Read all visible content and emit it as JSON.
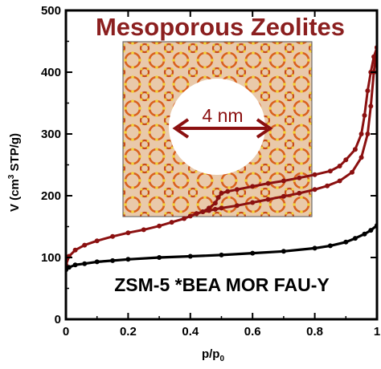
{
  "chart_data": {
    "type": "line",
    "title": "Mesoporous Zeolites",
    "xlabel": "p/p",
    "xlabel_sub": "0",
    "ylabel_parts": [
      "V (cm",
      "3",
      " STP/g)"
    ],
    "xlim": [
      0,
      1
    ],
    "ylim": [
      0,
      500
    ],
    "x_ticks": [
      0,
      0.2,
      0.4,
      0.6,
      0.8,
      1
    ],
    "x_tick_labels": [
      "0",
      "0.2",
      "0.4",
      "0.6",
      "0.8",
      "1"
    ],
    "y_ticks": [
      0,
      100,
      200,
      300,
      400,
      500
    ],
    "y_tick_labels": [
      "0",
      "100",
      "200",
      "300",
      "400",
      "500"
    ],
    "grid": false,
    "colors": {
      "mesoporous": "#8b1010",
      "microporous": "#000000",
      "title": "#8b1f1f",
      "inset_bg": "#e8c7a8"
    },
    "series": [
      {
        "role": "mesoporous-adsorption",
        "x": [
          0.0,
          0.01,
          0.03,
          0.06,
          0.1,
          0.15,
          0.2,
          0.25,
          0.3,
          0.34,
          0.38,
          0.4,
          0.42,
          0.44,
          0.46,
          0.48,
          0.5,
          0.55,
          0.6,
          0.65,
          0.7,
          0.75,
          0.8,
          0.84,
          0.88,
          0.92,
          0.95,
          0.97,
          0.98,
          0.99,
          1.0
        ],
        "y": [
          88,
          102,
          112,
          120,
          127,
          134,
          140,
          145,
          151,
          157,
          163,
          167,
          171,
          174,
          176,
          178,
          180,
          184,
          189,
          194,
          199,
          204,
          210,
          216,
          224,
          238,
          262,
          300,
          345,
          400,
          440
        ]
      },
      {
        "role": "mesoporous-desorption",
        "x": [
          1.0,
          0.99,
          0.98,
          0.97,
          0.96,
          0.95,
          0.93,
          0.9,
          0.88,
          0.85,
          0.8,
          0.75,
          0.7,
          0.65,
          0.6,
          0.55,
          0.52,
          0.5,
          0.49,
          0.48,
          0.46,
          0.44,
          0.42
        ],
        "y": [
          440,
          425,
          400,
          370,
          330,
          300,
          275,
          258,
          248,
          240,
          234,
          229,
          224,
          220,
          215,
          210,
          207,
          204,
          197,
          188,
          180,
          174,
          171
        ]
      },
      {
        "role": "microporous",
        "x": [
          0.0,
          0.01,
          0.03,
          0.06,
          0.1,
          0.15,
          0.2,
          0.3,
          0.4,
          0.5,
          0.6,
          0.7,
          0.8,
          0.85,
          0.9,
          0.93,
          0.96,
          0.98,
          1.0
        ],
        "y": [
          80,
          84,
          88,
          90,
          93,
          95,
          97,
          100,
          102,
          104,
          107,
          110,
          115,
          119,
          125,
          131,
          138,
          144,
          152
        ]
      }
    ]
  },
  "inset": {
    "pore_label": "4 nm",
    "materials_label": "ZSM-5 *BEA MOR FAU-Y"
  }
}
